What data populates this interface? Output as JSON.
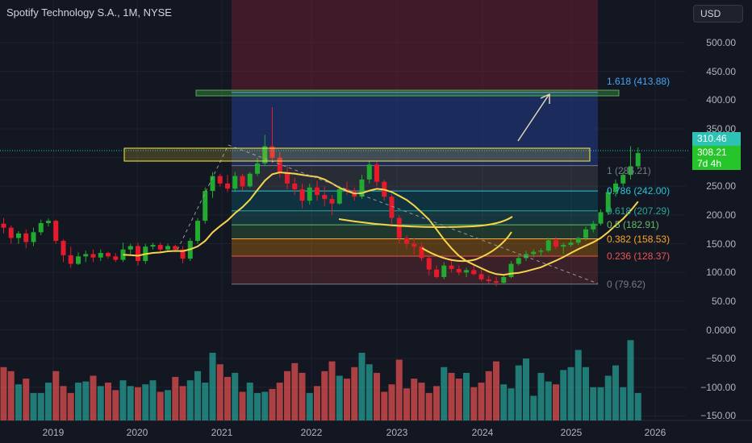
{
  "header": {
    "title": "Spotify Technology S.A., 1M, NYSE",
    "currency_button": "USD"
  },
  "price_axis": {
    "ticks": [
      "500.00",
      "450.00",
      "400.00",
      "350.00",
      "300.00",
      "250.00",
      "200.00",
      "150.00",
      "100.00",
      "50.00",
      "0.0000",
      "−50.00",
      "−100.00",
      "−150.00"
    ],
    "last_price": "310.46",
    "close_price": "308.21",
    "countdown": "7d 4h"
  },
  "time_axis": {
    "ticks": [
      "2019",
      "2020",
      "2021",
      "2022",
      "2023",
      "2024",
      "2025",
      "2026"
    ]
  },
  "fibonacci": {
    "levels": [
      {
        "ratio": "1.618",
        "price": "413.88",
        "label": "1.618 (413.88)",
        "color": "#42a5f5"
      },
      {
        "ratio": "1",
        "price": "286.21",
        "label": "1 (286.21)",
        "color": "#787b86"
      },
      {
        "ratio": "0.786",
        "price": "242.00",
        "label": "0.786 (242.00)",
        "color": "#26c6da"
      },
      {
        "ratio": "0.618",
        "price": "207.29",
        "label": "0.618 (207.29)",
        "color": "#26a69a"
      },
      {
        "ratio": "0.5",
        "price": "182.91",
        "label": "0.5 (182.91)",
        "color": "#66bb6a"
      },
      {
        "ratio": "0.382",
        "price": "158.53",
        "label": "0.382 (158.53)",
        "color": "#ffa726"
      },
      {
        "ratio": "0.236",
        "price": "128.37",
        "label": "0.236 (128.37)",
        "color": "#ef5350"
      },
      {
        "ratio": "0",
        "price": "79.62",
        "label": "0 (79.62)",
        "color": "#787b86"
      }
    ]
  },
  "colors": {
    "background": "#131722",
    "up": "#26a69a",
    "down": "#ef5350",
    "candle_up": "#22ab30",
    "candle_down": "#e51b2c",
    "ma": "#f7d54a",
    "zone": "#ffeb3b",
    "target_zone": "#4caf50",
    "last_price_bg": "#2ec2b4",
    "close_bg": "#26c62b"
  },
  "chart_data": {
    "type": "candlestick",
    "title": "Spotify Technology S.A., 1M, NYSE",
    "interval": "1M",
    "xlabel": "",
    "ylabel": "",
    "x_ticks": [
      "2019",
      "2020",
      "2021",
      "2022",
      "2023",
      "2024",
      "2025",
      "2026"
    ],
    "ylim": [
      50,
      520
    ],
    "candles": [
      {
        "t": "2018-09",
        "o": 185,
        "h": 195,
        "l": 168,
        "c": 178
      },
      {
        "t": "2018-10",
        "o": 178,
        "h": 182,
        "l": 150,
        "c": 160
      },
      {
        "t": "2018-11",
        "o": 160,
        "h": 172,
        "l": 150,
        "c": 168
      },
      {
        "t": "2018-12",
        "o": 168,
        "h": 175,
        "l": 142,
        "c": 153
      },
      {
        "t": "2019-01",
        "o": 153,
        "h": 178,
        "l": 146,
        "c": 170
      },
      {
        "t": "2019-02",
        "o": 170,
        "h": 192,
        "l": 165,
        "c": 186
      },
      {
        "t": "2019-03",
        "o": 186,
        "h": 194,
        "l": 180,
        "c": 190
      },
      {
        "t": "2019-04",
        "o": 190,
        "h": 192,
        "l": 150,
        "c": 155
      },
      {
        "t": "2019-05",
        "o": 155,
        "h": 158,
        "l": 118,
        "c": 130
      },
      {
        "t": "2019-06",
        "o": 130,
        "h": 145,
        "l": 108,
        "c": 115
      },
      {
        "t": "2019-07",
        "o": 115,
        "h": 135,
        "l": 113,
        "c": 128
      },
      {
        "t": "2019-08",
        "o": 128,
        "h": 138,
        "l": 118,
        "c": 132
      },
      {
        "t": "2019-09",
        "o": 132,
        "h": 140,
        "l": 118,
        "c": 126
      },
      {
        "t": "2019-10",
        "o": 126,
        "h": 140,
        "l": 120,
        "c": 134
      },
      {
        "t": "2019-11",
        "o": 134,
        "h": 136,
        "l": 124,
        "c": 128
      },
      {
        "t": "2019-12",
        "o": 128,
        "h": 134,
        "l": 118,
        "c": 122
      },
      {
        "t": "2020-01",
        "o": 122,
        "h": 152,
        "l": 118,
        "c": 140
      },
      {
        "t": "2020-02",
        "o": 140,
        "h": 150,
        "l": 132,
        "c": 146
      },
      {
        "t": "2020-03",
        "o": 146,
        "h": 152,
        "l": 112,
        "c": 120
      },
      {
        "t": "2020-04",
        "o": 120,
        "h": 150,
        "l": 115,
        "c": 145
      },
      {
        "t": "2020-05",
        "o": 145,
        "h": 152,
        "l": 140,
        "c": 148
      },
      {
        "t": "2020-06",
        "o": 148,
        "h": 152,
        "l": 135,
        "c": 140
      },
      {
        "t": "2020-07",
        "o": 140,
        "h": 150,
        "l": 136,
        "c": 146
      },
      {
        "t": "2020-08",
        "o": 146,
        "h": 148,
        "l": 136,
        "c": 140
      },
      {
        "t": "2020-09",
        "o": 140,
        "h": 146,
        "l": 116,
        "c": 124
      },
      {
        "t": "2020-10",
        "o": 124,
        "h": 160,
        "l": 120,
        "c": 155
      },
      {
        "t": "2020-11",
        "o": 155,
        "h": 195,
        "l": 150,
        "c": 190
      },
      {
        "t": "2020-12",
        "o": 190,
        "h": 248,
        "l": 185,
        "c": 242
      },
      {
        "t": "2021-01",
        "o": 242,
        "h": 275,
        "l": 230,
        "c": 268
      },
      {
        "t": "2021-02",
        "o": 268,
        "h": 272,
        "l": 250,
        "c": 255
      },
      {
        "t": "2021-03",
        "o": 255,
        "h": 270,
        "l": 240,
        "c": 246
      },
      {
        "t": "2021-04",
        "o": 246,
        "h": 275,
        "l": 240,
        "c": 268
      },
      {
        "t": "2021-05",
        "o": 268,
        "h": 272,
        "l": 243,
        "c": 250
      },
      {
        "t": "2021-06",
        "o": 250,
        "h": 275,
        "l": 248,
        "c": 272
      },
      {
        "t": "2021-07",
        "o": 272,
        "h": 300,
        "l": 268,
        "c": 290
      },
      {
        "t": "2021-08",
        "o": 290,
        "h": 340,
        "l": 285,
        "c": 320
      },
      {
        "t": "2021-09",
        "o": 320,
        "h": 388,
        "l": 290,
        "c": 300
      },
      {
        "t": "2021-10",
        "o": 300,
        "h": 310,
        "l": 265,
        "c": 275
      },
      {
        "t": "2021-11",
        "o": 275,
        "h": 285,
        "l": 245,
        "c": 255
      },
      {
        "t": "2021-12",
        "o": 255,
        "h": 265,
        "l": 235,
        "c": 245
      },
      {
        "t": "2022-01",
        "o": 245,
        "h": 255,
        "l": 212,
        "c": 225
      },
      {
        "t": "2022-02",
        "o": 225,
        "h": 255,
        "l": 218,
        "c": 248
      },
      {
        "t": "2022-03",
        "o": 248,
        "h": 260,
        "l": 225,
        "c": 235
      },
      {
        "t": "2022-04",
        "o": 235,
        "h": 250,
        "l": 215,
        "c": 228
      },
      {
        "t": "2022-05",
        "o": 228,
        "h": 235,
        "l": 200,
        "c": 220
      },
      {
        "t": "2022-06",
        "o": 220,
        "h": 250,
        "l": 218,
        "c": 245
      },
      {
        "t": "2022-07",
        "o": 245,
        "h": 258,
        "l": 235,
        "c": 242
      },
      {
        "t": "2022-08",
        "o": 242,
        "h": 248,
        "l": 225,
        "c": 232
      },
      {
        "t": "2022-09",
        "o": 232,
        "h": 270,
        "l": 228,
        "c": 262
      },
      {
        "t": "2022-10",
        "o": 262,
        "h": 295,
        "l": 255,
        "c": 288
      },
      {
        "t": "2022-11",
        "o": 288,
        "h": 295,
        "l": 250,
        "c": 258
      },
      {
        "t": "2022-12",
        "o": 258,
        "h": 262,
        "l": 225,
        "c": 232
      },
      {
        "t": "2023-01",
        "o": 232,
        "h": 236,
        "l": 185,
        "c": 195
      },
      {
        "t": "2023-02",
        "o": 195,
        "h": 200,
        "l": 150,
        "c": 160
      },
      {
        "t": "2023-03",
        "o": 160,
        "h": 165,
        "l": 140,
        "c": 150
      },
      {
        "t": "2023-04",
        "o": 150,
        "h": 160,
        "l": 132,
        "c": 145
      },
      {
        "t": "2023-05",
        "o": 145,
        "h": 152,
        "l": 120,
        "c": 125
      },
      {
        "t": "2023-06",
        "o": 125,
        "h": 130,
        "l": 95,
        "c": 105
      },
      {
        "t": "2023-07",
        "o": 105,
        "h": 112,
        "l": 90,
        "c": 92
      },
      {
        "t": "2023-08",
        "o": 92,
        "h": 118,
        "l": 88,
        "c": 112
      },
      {
        "t": "2023-09",
        "o": 112,
        "h": 122,
        "l": 100,
        "c": 106
      },
      {
        "t": "2023-10",
        "o": 106,
        "h": 112,
        "l": 95,
        "c": 100
      },
      {
        "t": "2023-11",
        "o": 100,
        "h": 108,
        "l": 92,
        "c": 104
      },
      {
        "t": "2023-12",
        "o": 104,
        "h": 112,
        "l": 95,
        "c": 97
      },
      {
        "t": "2024-01",
        "o": 97,
        "h": 105,
        "l": 85,
        "c": 88
      },
      {
        "t": "2024-02",
        "o": 88,
        "h": 95,
        "l": 80,
        "c": 85
      },
      {
        "t": "2024-03",
        "o": 85,
        "h": 92,
        "l": 76,
        "c": 82
      },
      {
        "t": "2024-04",
        "o": 82,
        "h": 95,
        "l": 80,
        "c": 92
      },
      {
        "t": "2024-05",
        "o": 92,
        "h": 120,
        "l": 90,
        "c": 115
      },
      {
        "t": "2024-06",
        "o": 115,
        "h": 130,
        "l": 112,
        "c": 125
      },
      {
        "t": "2024-07",
        "o": 125,
        "h": 138,
        "l": 120,
        "c": 132
      },
      {
        "t": "2024-08",
        "o": 132,
        "h": 140,
        "l": 126,
        "c": 136
      },
      {
        "t": "2024-09",
        "o": 136,
        "h": 142,
        "l": 128,
        "c": 138
      },
      {
        "t": "2024-10",
        "o": 138,
        "h": 160,
        "l": 135,
        "c": 156
      },
      {
        "t": "2024-11",
        "o": 156,
        "h": 162,
        "l": 140,
        "c": 145
      },
      {
        "t": "2024-12",
        "o": 145,
        "h": 152,
        "l": 132,
        "c": 148
      },
      {
        "t": "2025-01",
        "o": 148,
        "h": 158,
        "l": 145,
        "c": 152
      },
      {
        "t": "2025-02",
        "o": 152,
        "h": 162,
        "l": 148,
        "c": 160
      },
      {
        "t": "2025-03",
        "o": 160,
        "h": 180,
        "l": 155,
        "c": 175
      },
      {
        "t": "2025-04",
        "o": 175,
        "h": 190,
        "l": 170,
        "c": 185
      },
      {
        "t": "2025-05",
        "o": 185,
        "h": 210,
        "l": 182,
        "c": 205
      },
      {
        "t": "2025-06",
        "o": 205,
        "h": 245,
        "l": 200,
        "c": 240
      },
      {
        "t": "2025-07",
        "o": 240,
        "h": 262,
        "l": 232,
        "c": 255
      },
      {
        "t": "2025-08",
        "o": 255,
        "h": 275,
        "l": 250,
        "c": 270
      },
      {
        "t": "2025-09",
        "o": 270,
        "h": 320,
        "l": 262,
        "c": 285
      },
      {
        "t": "2025-10",
        "o": 285,
        "h": 318,
        "l": 280,
        "c": 308
      }
    ],
    "volume_osc": [
      -65,
      -72,
      -95,
      -85,
      -110,
      -110,
      -92,
      -72,
      -98,
      -110,
      -92,
      -90,
      -80,
      -98,
      -92,
      -105,
      -88,
      -98,
      -100,
      -95,
      -88,
      -108,
      -105,
      -82,
      -98,
      -88,
      -72,
      -92,
      -40,
      -60,
      -82,
      -75,
      -108,
      -92,
      -110,
      -108,
      -103,
      -92,
      -72,
      -58,
      -75,
      -110,
      -98,
      -72,
      -55,
      -80,
      -85,
      -65,
      -40,
      -60,
      -75,
      -108,
      -95,
      -52,
      -102,
      -85,
      -92,
      -110,
      -98,
      -65,
      -75,
      -85,
      -75,
      -100,
      -92,
      -72,
      -55,
      -95,
      -102,
      -62,
      -50,
      -115,
      -75,
      -90,
      -95,
      -70,
      -65,
      -35,
      -65,
      -100,
      -100,
      -80,
      -62,
      -100,
      -18,
      -110
    ]
  }
}
